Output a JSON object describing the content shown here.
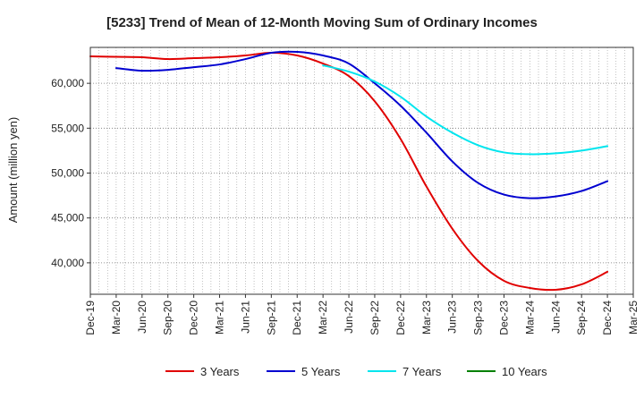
{
  "chart_data": {
    "type": "line",
    "title": "[5233]  Trend of Mean of 12-Month Moving Sum of Ordinary Incomes",
    "xlabel": "",
    "ylabel": "Amount (million yen)",
    "ylim": [
      36500,
      64000
    ],
    "yticks": [
      40000,
      45000,
      50000,
      55000,
      60000
    ],
    "ytick_labels": [
      "40,000",
      "45,000",
      "50,000",
      "55,000",
      "60,000"
    ],
    "x_categories": [
      "Dec-19",
      "Mar-20",
      "Jun-20",
      "Sep-20",
      "Dec-20",
      "Mar-21",
      "Jun-21",
      "Sep-21",
      "Dec-21",
      "Mar-22",
      "Jun-22",
      "Sep-22",
      "Dec-22",
      "Mar-23",
      "Jun-23",
      "Sep-23",
      "Dec-23",
      "Mar-24",
      "Jun-24",
      "Sep-24",
      "Dec-24",
      "Mar-25"
    ],
    "grid": true,
    "legend_position": "bottom",
    "series": [
      {
        "name": "3 Years",
        "color": "#e00000",
        "values": [
          63000,
          62950,
          62900,
          62700,
          62800,
          62900,
          63100,
          63400,
          63100,
          62200,
          60800,
          58000,
          53800,
          48500,
          43800,
          40200,
          38000,
          37200,
          37000,
          37600,
          39000
        ]
      },
      {
        "name": "5 Years",
        "color": "#0000d0",
        "values": [
          null,
          61700,
          61400,
          61500,
          61800,
          62100,
          62700,
          63400,
          63500,
          63100,
          62200,
          60000,
          57500,
          54500,
          51300,
          48900,
          47600,
          47200,
          47400,
          48000,
          49100
        ]
      },
      {
        "name": "7 Years",
        "color": "#00e5ee",
        "values": [
          null,
          null,
          null,
          null,
          null,
          null,
          null,
          null,
          null,
          62000,
          61300,
          60200,
          58500,
          56300,
          54500,
          53100,
          52300,
          52100,
          52200,
          52500,
          53000
        ]
      },
      {
        "name": "10 Years",
        "color": "#008000",
        "values": [
          null,
          null,
          null,
          null,
          null,
          null,
          null,
          null,
          null,
          null,
          null,
          null,
          null,
          null,
          null,
          null,
          null,
          null,
          null,
          null,
          null
        ]
      }
    ]
  }
}
